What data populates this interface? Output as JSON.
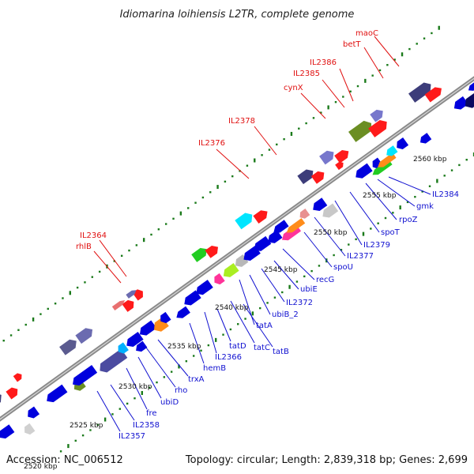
{
  "title": "Idiomarina loihiensis L2TR, complete genome",
  "footer": {
    "accession": "Accession: NC_006512",
    "summary": "Topology: circular; Length: 2,839,318 bp; Genes: 2,699"
  },
  "colors": {
    "backbone": "#808080",
    "forward_gene": "#0000dd",
    "reverse_gene": "#ff0000",
    "label_blue": "#1010d0",
    "label_red": "#e01010",
    "tick": "#1a7a1a"
  },
  "scale_labels": [
    "2520 kbp",
    "2525 kbp",
    "2530 kbp",
    "2535 kbp",
    "2540 kbp",
    "2545 kbp",
    "2550 kbp",
    "2555 kbp",
    "2560 kbp"
  ],
  "top_labels": [
    "maoC",
    "betT",
    "IL2386",
    "IL2385",
    "cynX",
    "IL2378",
    "IL2376",
    "IL2364",
    "rhlB"
  ],
  "bottom_labels": [
    "IL2384",
    "gmk",
    "rpoZ",
    "spoT",
    "IL2379",
    "IL2377",
    "spoU",
    "recG",
    "ubiE",
    "IL2372",
    "ubiB_2",
    "tatA",
    "tatB",
    "tatC",
    "tatD",
    "IL2366",
    "hemB",
    "trxA",
    "rho",
    "ubiD",
    "fre",
    "IL2358",
    "IL2357"
  ]
}
